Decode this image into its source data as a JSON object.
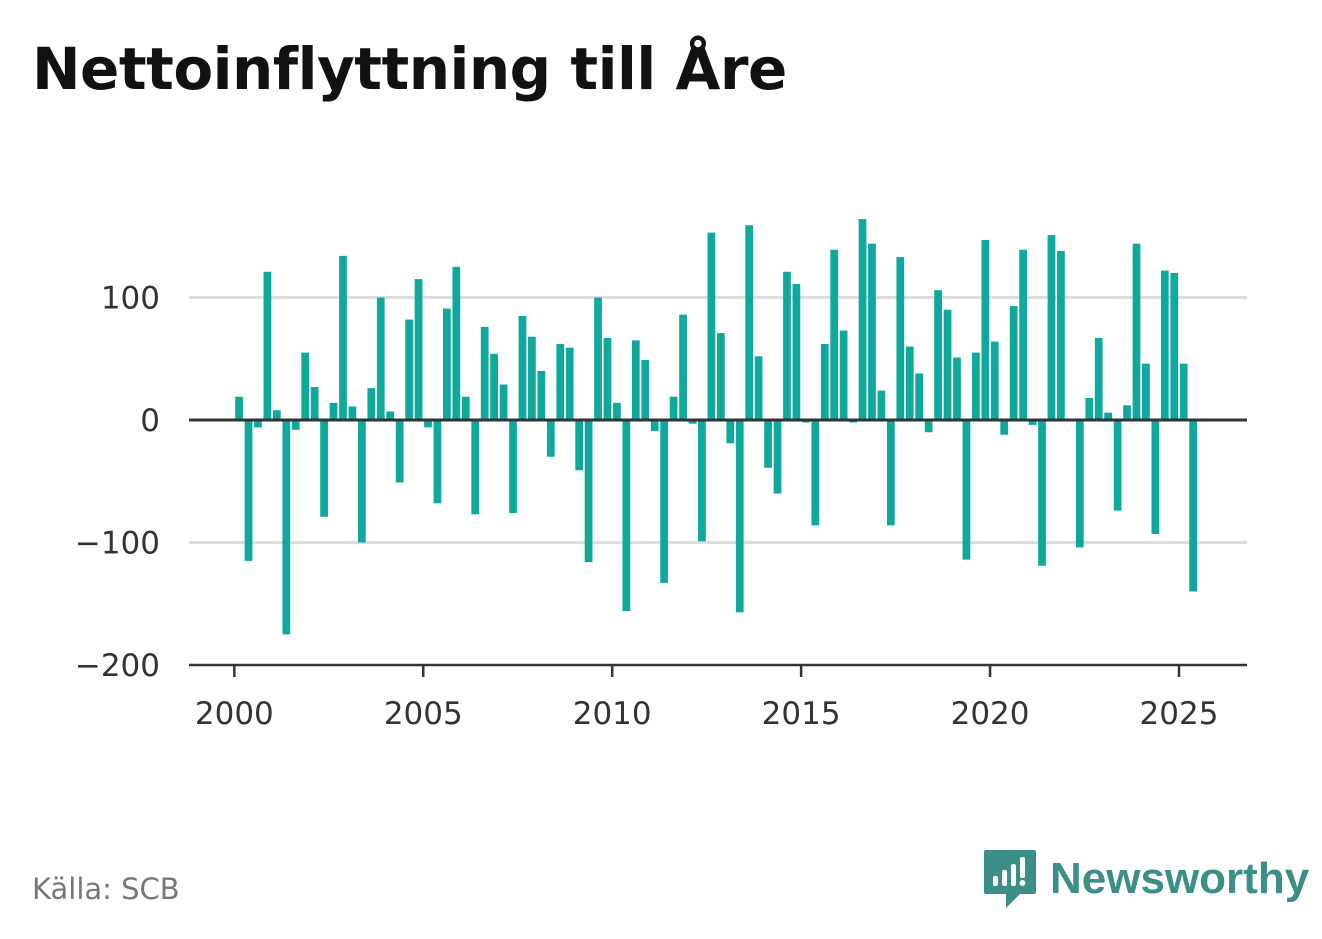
{
  "title": "Nettoinflyttning till Åre",
  "source": "Källa: SCB",
  "brand": {
    "name": "Newsworthy",
    "icon": "newsworthy-logo-icon",
    "color": "#3b8f86"
  },
  "colors": {
    "bar": "#0ea89c",
    "grid": "#dddddd",
    "baseline": "#333333",
    "axis": "#333333"
  },
  "chart_data": {
    "type": "bar",
    "x_unit": "quarter",
    "xlim": [
      1998.8,
      2026.8
    ],
    "ylim": [
      -200,
      165
    ],
    "yticks": [
      100,
      0,
      -100,
      -200
    ],
    "ytick_labels": [
      "100",
      "0",
      "−100",
      "−200"
    ],
    "xticks": [
      2000,
      2005,
      2010,
      2015,
      2020,
      2025
    ],
    "xtick_labels": [
      "2000",
      "2005",
      "2010",
      "2015",
      "2020",
      "2025"
    ],
    "grid": true,
    "series": [
      {
        "x": [
          "2000Q1",
          "2000Q2",
          "2000Q3",
          "2000Q4",
          "2001Q1",
          "2001Q2",
          "2001Q3",
          "2001Q4",
          "2002Q1",
          "2002Q2",
          "2002Q3",
          "2002Q4",
          "2003Q1",
          "2003Q2",
          "2003Q3",
          "2003Q4",
          "2004Q1",
          "2004Q2",
          "2004Q3",
          "2004Q4",
          "2005Q1",
          "2005Q2",
          "2005Q3",
          "2005Q4",
          "2006Q1",
          "2006Q2",
          "2006Q3",
          "2006Q4",
          "2007Q1",
          "2007Q2",
          "2007Q3",
          "2007Q4",
          "2008Q1",
          "2008Q2",
          "2008Q3",
          "2008Q4",
          "2009Q1",
          "2009Q2",
          "2009Q3",
          "2009Q4",
          "2010Q1",
          "2010Q2",
          "2010Q3",
          "2010Q4",
          "2011Q1",
          "2011Q2",
          "2011Q3",
          "2011Q4",
          "2012Q1",
          "2012Q2",
          "2012Q3",
          "2012Q4",
          "2013Q1",
          "2013Q2",
          "2013Q3",
          "2013Q4",
          "2014Q1",
          "2014Q2",
          "2014Q3",
          "2014Q4",
          "2015Q1",
          "2015Q2",
          "2015Q3",
          "2015Q4",
          "2016Q1",
          "2016Q2",
          "2016Q3",
          "2016Q4",
          "2017Q1",
          "2017Q2",
          "2017Q3",
          "2017Q4",
          "2018Q1",
          "2018Q2",
          "2018Q3",
          "2018Q4",
          "2019Q1",
          "2019Q2",
          "2019Q3",
          "2019Q4",
          "2020Q1",
          "2020Q2",
          "2020Q3",
          "2020Q4",
          "2021Q1",
          "2021Q2",
          "2021Q3",
          "2021Q4",
          "2022Q1",
          "2022Q2",
          "2022Q3",
          "2022Q4",
          "2023Q1",
          "2023Q2",
          "2023Q3",
          "2023Q4",
          "2024Q1",
          "2024Q2",
          "2024Q3",
          "2024Q4",
          "2025Q1",
          "2025Q2"
        ],
        "values": [
          19,
          -115,
          -6,
          121,
          8,
          -175,
          -8,
          55,
          27,
          -79,
          14,
          134,
          11,
          -100,
          26,
          100,
          7,
          -51,
          82,
          115,
          -6,
          -68,
          91,
          125,
          19,
          -77,
          76,
          54,
          29,
          -76,
          85,
          68,
          40,
          -30,
          62,
          59,
          -41,
          -116,
          100,
          67,
          14,
          -156,
          65,
          49,
          -9,
          -133,
          19,
          86,
          -3,
          -99,
          153,
          71,
          -19,
          -157,
          159,
          52,
          -39,
          -60,
          121,
          111,
          -2,
          -86,
          62,
          139,
          73,
          -2,
          164,
          144,
          24,
          -86,
          133,
          60,
          38,
          -10,
          106,
          90,
          51,
          -114,
          55,
          147,
          64,
          -12,
          93,
          139,
          -4,
          -119,
          151,
          138,
          -1,
          -104,
          18,
          67,
          6,
          -74,
          12,
          144,
          46,
          -93,
          122,
          120,
          46,
          -140
        ]
      }
    ]
  }
}
